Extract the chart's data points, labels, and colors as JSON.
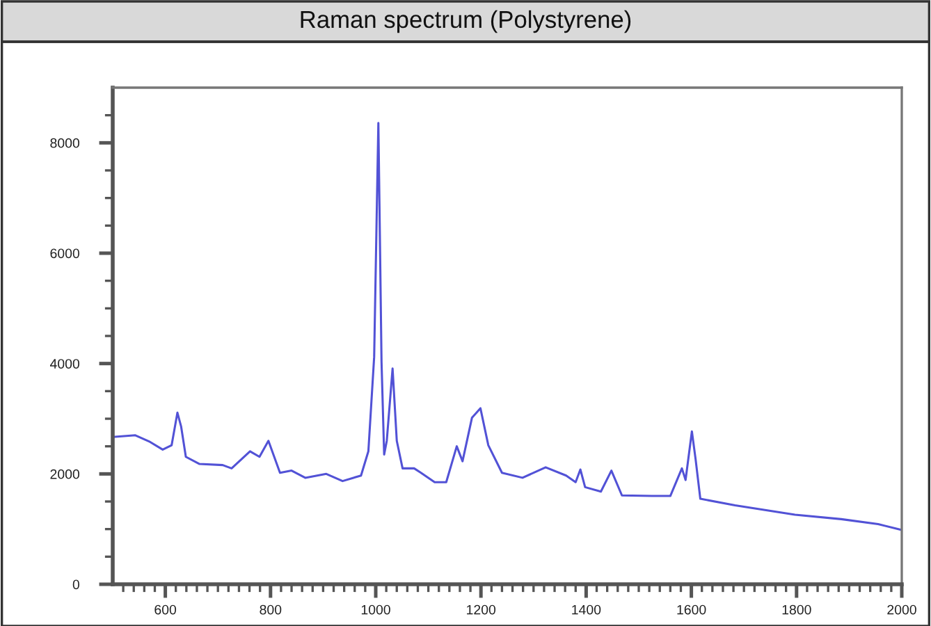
{
  "chart_data": {
    "type": "line",
    "title": "Raman spectrum (Polystyrene)",
    "x": [
      500,
      543,
      569,
      595,
      612,
      623,
      630,
      639,
      665,
      709,
      726,
      761,
      779,
      796,
      818,
      840,
      866,
      906,
      937,
      972,
      986,
      997,
      1003,
      1005,
      1008,
      1011,
      1016,
      1021,
      1032,
      1040,
      1051,
      1073,
      1086,
      1112,
      1134,
      1154,
      1165,
      1183,
      1199,
      1214,
      1240,
      1279,
      1323,
      1362,
      1380,
      1389,
      1398,
      1428,
      1448,
      1468,
      1525,
      1560,
      1582,
      1589,
      1601,
      1608,
      1617,
      1683,
      1797,
      1885,
      1955,
      1997
    ],
    "series": [
      {
        "color": "#5252d6",
        "values": [
          2670,
          2700,
          2590,
          2440,
          2520,
          3110,
          2860,
          2310,
          2180,
          2160,
          2100,
          2410,
          2310,
          2600,
          2020,
          2060,
          1930,
          2000,
          1870,
          1970,
          2410,
          4120,
          7310,
          8360,
          6220,
          4030,
          2350,
          2600,
          3910,
          2600,
          2100,
          2100,
          2020,
          1850,
          1850,
          2500,
          2230,
          3020,
          3190,
          2520,
          2020,
          1930,
          2120,
          1970,
          1850,
          2080,
          1760,
          1680,
          2060,
          1610,
          1600,
          1600,
          2100,
          1890,
          2770,
          2270,
          1550,
          1430,
          1260,
          1180,
          1090,
          990
        ]
      }
    ],
    "xlim": [
      500,
      2000
    ],
    "ylim": [
      0,
      9000
    ],
    "xticks": [
      {
        "value": 520,
        "label": null
      },
      {
        "value": 540,
        "label": null
      },
      {
        "value": 560,
        "label": null
      },
      {
        "value": 580,
        "label": null
      },
      600,
      {
        "value": 620,
        "label": null
      },
      {
        "value": 640,
        "label": null
      },
      {
        "value": 660,
        "label": null
      },
      {
        "value": 680,
        "label": null
      },
      {
        "value": 700,
        "label": null
      },
      {
        "value": 720,
        "label": null
      },
      {
        "value": 740,
        "label": null
      },
      {
        "value": 760,
        "label": null
      },
      {
        "value": 780,
        "label": null
      },
      800,
      {
        "value": 820,
        "label": null
      },
      {
        "value": 840,
        "label": null
      },
      {
        "value": 860,
        "label": null
      },
      {
        "value": 880,
        "label": null
      },
      {
        "value": 900,
        "label": null
      },
      {
        "value": 920,
        "label": null
      },
      {
        "value": 940,
        "label": null
      },
      {
        "value": 960,
        "label": null
      },
      {
        "value": 980,
        "label": null
      },
      1000,
      {
        "value": 1020,
        "label": null
      },
      {
        "value": 1040,
        "label": null
      },
      {
        "value": 1060,
        "label": null
      },
      {
        "value": 1080,
        "label": null
      },
      {
        "value": 1100,
        "label": null
      },
      {
        "value": 1120,
        "label": null
      },
      {
        "value": 1140,
        "label": null
      },
      {
        "value": 1160,
        "label": null
      },
      {
        "value": 1180,
        "label": null
      },
      1200,
      {
        "value": 1220,
        "label": null
      },
      {
        "value": 1240,
        "label": null
      },
      {
        "value": 1260,
        "label": null
      },
      {
        "value": 1280,
        "label": null
      },
      {
        "value": 1300,
        "label": null
      },
      {
        "value": 1320,
        "label": null
      },
      {
        "value": 1340,
        "label": null
      },
      {
        "value": 1360,
        "label": null
      },
      {
        "value": 1380,
        "label": null
      },
      1400,
      {
        "value": 1420,
        "label": null
      },
      {
        "value": 1440,
        "label": null
      },
      {
        "value": 1460,
        "label": null
      },
      {
        "value": 1480,
        "label": null
      },
      {
        "value": 1500,
        "label": null
      },
      {
        "value": 1520,
        "label": null
      },
      {
        "value": 1540,
        "label": null
      },
      {
        "value": 1560,
        "label": null
      },
      {
        "value": 1580,
        "label": null
      },
      1600,
      {
        "value": 1620,
        "label": null
      },
      {
        "value": 1640,
        "label": null
      },
      {
        "value": 1660,
        "label": null
      },
      {
        "value": 1680,
        "label": null
      },
      {
        "value": 1700,
        "label": null
      },
      {
        "value": 1720,
        "label": null
      },
      {
        "value": 1740,
        "label": null
      },
      {
        "value": 1760,
        "label": null
      },
      {
        "value": 1780,
        "label": null
      },
      1800,
      {
        "value": 1820,
        "label": null
      },
      {
        "value": 1840,
        "label": null
      },
      {
        "value": 1860,
        "label": null
      },
      {
        "value": 1880,
        "label": null
      },
      {
        "value": 1900,
        "label": null
      },
      {
        "value": 1920,
        "label": null
      },
      {
        "value": 1940,
        "label": null
      },
      {
        "value": 1960,
        "label": null
      },
      {
        "value": 1980,
        "label": null
      },
      2000
    ],
    "yticks": [
      0,
      {
        "value": 500,
        "label": null
      },
      {
        "value": 1000,
        "label": null
      },
      {
        "value": 1500,
        "label": null
      },
      2000,
      {
        "value": 2500,
        "label": null
      },
      {
        "value": 3000,
        "label": null
      },
      {
        "value": 3500,
        "label": null
      },
      4000,
      {
        "value": 4500,
        "label": null
      },
      {
        "value": 5000,
        "label": null
      },
      {
        "value": 5500,
        "label": null
      },
      6000,
      {
        "value": 6500,
        "label": null
      },
      {
        "value": 7000,
        "label": null
      },
      {
        "value": 7500,
        "label": null
      },
      8000,
      {
        "value": 8500,
        "label": null
      }
    ],
    "grid": false,
    "legend": false,
    "marker": "none",
    "line_style": "solid"
  }
}
